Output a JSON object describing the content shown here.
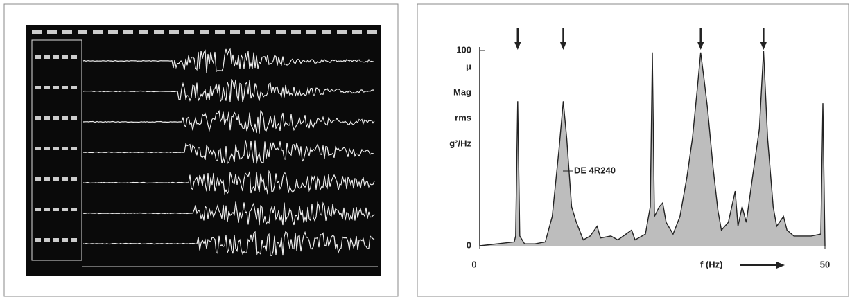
{
  "chart_data": {
    "type": "area",
    "y_label": [
      "μ",
      "Mag",
      "rms",
      "g²/Hz"
    ],
    "x_label": "f (Hz)",
    "annotation": "DE 4R240",
    "x": [
      0,
      5,
      5.2,
      5.5,
      5.8,
      6.5,
      8,
      9.5,
      10.5,
      11.5,
      12.1,
      12.6,
      13.3,
      14,
      15,
      16,
      17,
      17.5,
      19,
      20,
      22,
      22.5,
      24,
      24.7,
      25,
      25.3,
      26,
      26.5,
      27,
      28,
      29,
      30,
      30.8,
      31.5,
      32,
      32.5,
      33,
      33.8,
      34.5,
      35,
      36,
      37,
      37.4,
      38,
      38.6,
      39.5,
      40.5,
      41.1,
      41.7,
      42.5,
      43,
      44,
      44.5,
      45.5,
      48,
      49.4,
      49.7,
      50
    ],
    "values": [
      0,
      2,
      5,
      74,
      5,
      1,
      1,
      2,
      15,
      50,
      74,
      55,
      20,
      12,
      3,
      5,
      10,
      4,
      5,
      3,
      8,
      3,
      6,
      20,
      99,
      15,
      20,
      22,
      12,
      6,
      15,
      35,
      55,
      80,
      99,
      85,
      70,
      40,
      18,
      8,
      12,
      28,
      10,
      20,
      12,
      35,
      60,
      100,
      55,
      20,
      10,
      15,
      8,
      5,
      5,
      6,
      73,
      0
    ],
    "color": "#bdbdbd",
    "line_color": "#222222",
    "markers_x": [
      5.5,
      12.1,
      32,
      41.1
    ],
    "xlim": [
      0,
      50
    ],
    "xticks": [
      0,
      50
    ],
    "ylim": [
      0,
      100
    ],
    "yticks": [
      0,
      100
    ]
  }
}
